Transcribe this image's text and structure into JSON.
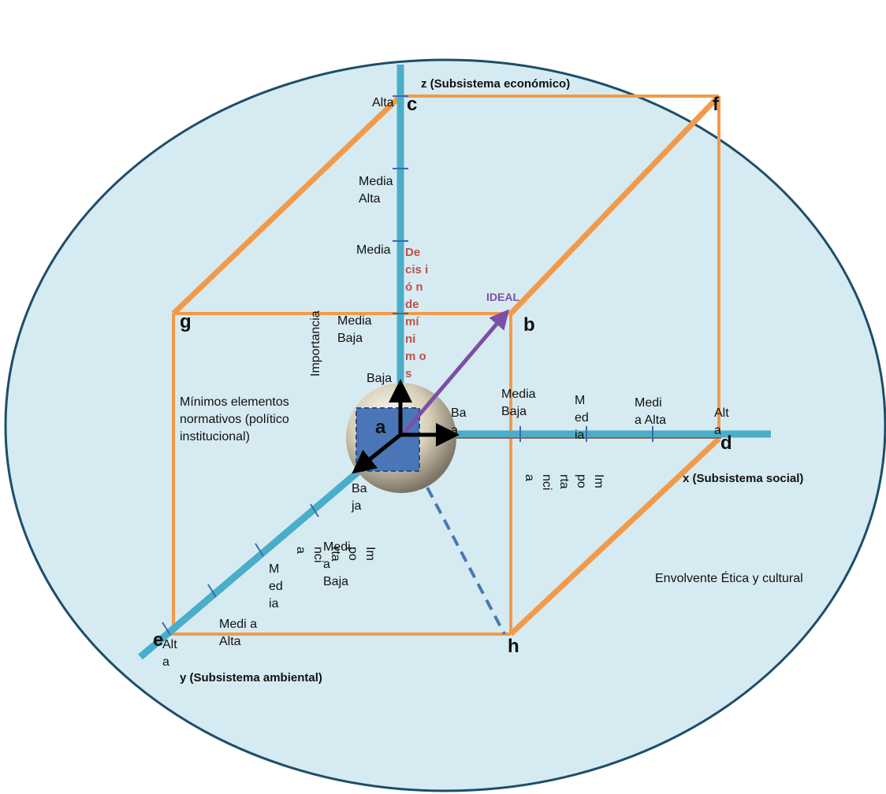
{
  "colors": {
    "background": "#d6ebf1",
    "ellipse_border": "#1d4e6a",
    "cube_edges": "#f29a4a",
    "axis": "#4aaec9",
    "ideal": "#7c4fa6",
    "decision": "#c0504d",
    "dashed": "#4a76b8",
    "center_square": "#4a76b8",
    "sphere": "#d6ccb4"
  },
  "vertices": {
    "a": "a",
    "b": "b",
    "c": "c",
    "d": "d",
    "e": "e",
    "f": "f",
    "g": "g",
    "h": "h"
  },
  "axes": {
    "z_title": "z (Subsistema económico)",
    "x_title": "x (Subsistema  social)",
    "y_title": "y (Subsistema  ambiental)"
  },
  "z_levels": {
    "alta": "Alta",
    "media_alta": "Media Alta",
    "media": "Media",
    "media_baja": "Media Baja",
    "baja": "Baja"
  },
  "x_levels": {
    "baja": "Ba a",
    "media_baja": "Media Baja",
    "media": "M ed ia",
    "media_alta": "Medi a Alta",
    "alta": "Alt a"
  },
  "y_levels": {
    "baja": "Ba ja",
    "media_baja": "Medi a Baja",
    "media": "M ed ia",
    "media_alta": "Medi a Alta",
    "alta": "Alt a"
  },
  "importance_labels": {
    "z": "Importancia",
    "x": "Im po rta nci a",
    "y": "Im po rta nci a"
  },
  "ideal_label": "IDEAL",
  "decision_label": "De cis ió n de mí ni m os",
  "minimum_label": "Mínimos elementos normativos (político institucional)",
  "envelope_label": "Envolvente Ética y cultural"
}
